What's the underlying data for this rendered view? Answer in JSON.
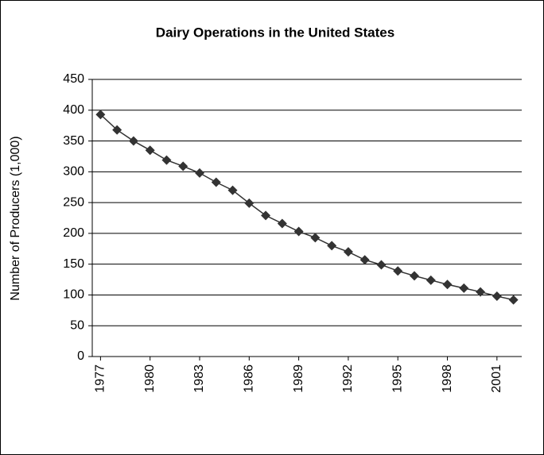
{
  "chart_data": {
    "type": "line",
    "title": "Dairy Operations in the United States",
    "ylabel": "Number of Producers  (1,000)",
    "x": [
      1977,
      1978,
      1979,
      1980,
      1981,
      1982,
      1983,
      1984,
      1985,
      1986,
      1987,
      1988,
      1989,
      1990,
      1991,
      1992,
      1993,
      1994,
      1995,
      1996,
      1997,
      1998,
      1999,
      2000,
      2001,
      2002
    ],
    "series": [
      {
        "name": "Dairy operations",
        "color": "#333333",
        "values": [
          393,
          368,
          350,
          335,
          319,
          309,
          298,
          283,
          270,
          249,
          229,
          216,
          203,
          193,
          180,
          170,
          157,
          149,
          139,
          131,
          124,
          117,
          111,
          105,
          98,
          92
        ]
      }
    ],
    "xlim": [
      1976.5,
      2002.5
    ],
    "xticks": [
      1977,
      1980,
      1983,
      1986,
      1989,
      1992,
      1995,
      1998,
      2001
    ],
    "ylim": [
      0,
      450
    ],
    "yticks": [
      0,
      50,
      100,
      150,
      200,
      250,
      300,
      350,
      400,
      450
    ],
    "grid": true
  }
}
